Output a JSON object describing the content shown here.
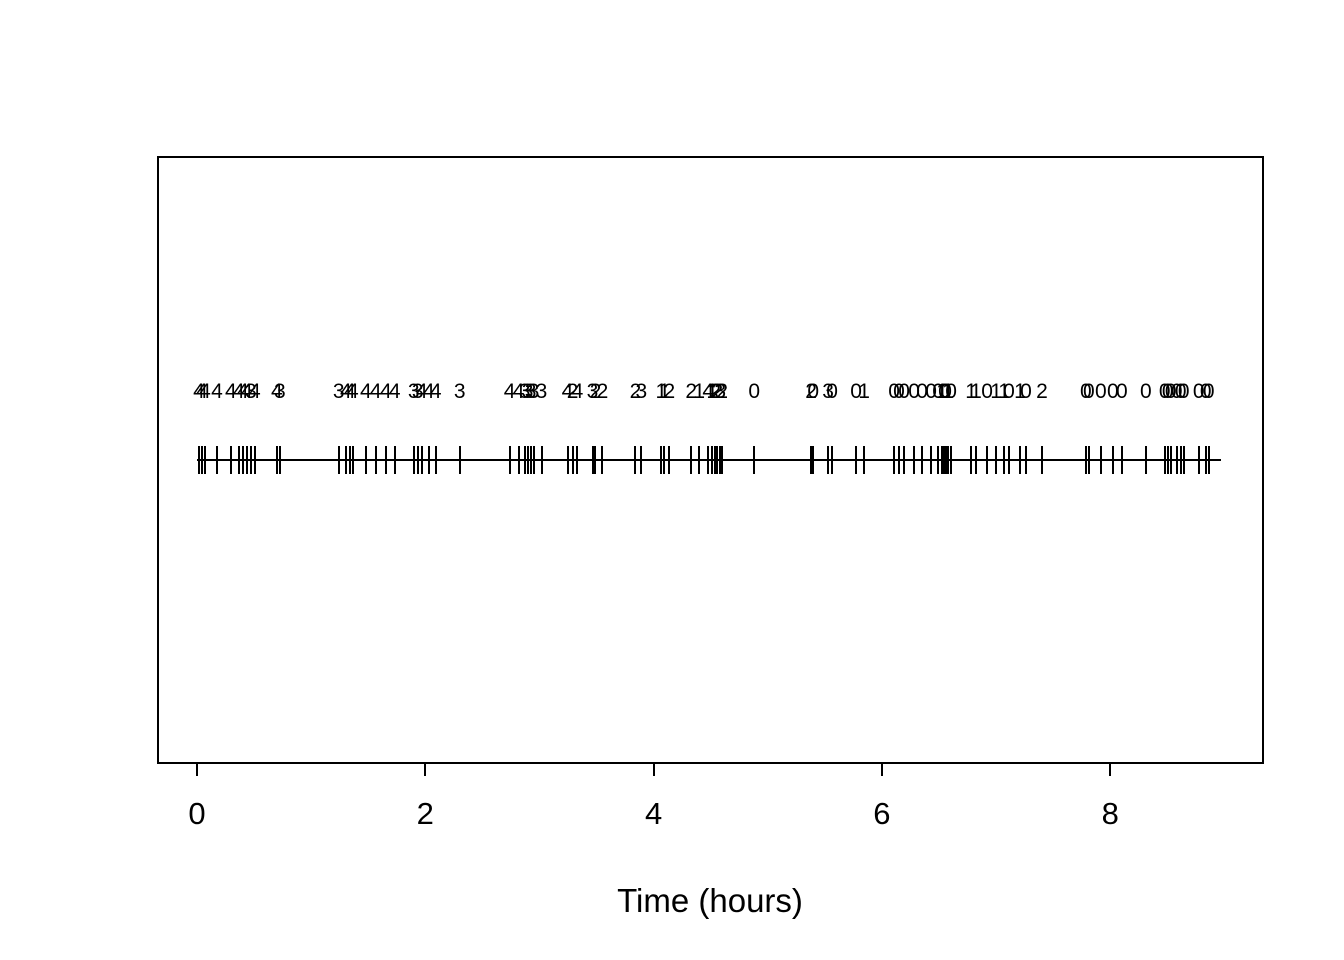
{
  "figure": {
    "background": "#ffffff",
    "foreground": "#000000",
    "xlabel": "Time (hours)"
  },
  "chart_data": {
    "type": "scatter",
    "subtype": "marked-event-rug-timeline",
    "title": "",
    "xlabel": "Time (hours)",
    "ylabel": "",
    "x_axis_ticks": [
      0,
      2,
      4,
      6,
      8
    ],
    "xlim": [
      -0.36,
      9.33
    ],
    "baseline_extent": [
      0,
      8.97
    ],
    "grid": "off",
    "legend": "none",
    "event_times_hours": [
      0.017,
      0.044,
      0.07,
      0.175,
      0.297,
      0.367,
      0.402,
      0.437,
      0.472,
      0.507,
      0.7,
      0.726,
      1.242,
      1.304,
      1.339,
      1.365,
      1.479,
      1.566,
      1.654,
      1.732,
      1.899,
      1.934,
      1.969,
      2.03,
      2.091,
      2.301,
      2.738,
      2.817,
      2.87,
      2.896,
      2.922,
      2.948,
      3.018,
      3.246,
      3.29,
      3.333,
      3.465,
      3.491,
      3.552,
      3.841,
      3.893,
      4.068,
      4.094,
      4.138,
      4.33,
      4.4,
      4.479,
      4.514,
      4.54,
      4.558,
      4.584,
      4.601,
      4.881,
      5.38,
      5.398,
      5.529,
      5.564,
      5.774,
      5.844,
      6.107,
      6.15,
      6.194,
      6.282,
      6.352,
      6.431,
      6.492,
      6.527,
      6.544,
      6.562,
      6.579,
      6.606,
      6.781,
      6.824,
      6.921,
      7.0,
      7.07,
      7.113,
      7.21,
      7.262,
      7.402,
      7.787,
      7.813,
      7.918,
      8.023,
      8.102,
      8.312,
      8.478,
      8.504,
      8.53,
      8.583,
      8.618,
      8.644,
      8.775,
      8.837,
      8.863
    ],
    "event_marks": [
      4,
      4,
      4,
      4,
      4,
      4,
      4,
      4,
      3,
      4,
      4,
      3,
      3,
      4,
      4,
      4,
      4,
      4,
      4,
      4,
      3,
      3,
      4,
      4,
      4,
      3,
      4,
      4,
      3,
      3,
      3,
      3,
      3,
      4,
      2,
      4,
      3,
      2,
      2,
      2,
      3,
      1,
      1,
      2,
      2,
      1,
      4,
      1,
      2,
      2,
      3,
      2,
      0,
      2,
      0,
      3,
      0,
      0,
      1,
      0,
      0,
      0,
      0,
      0,
      0,
      0,
      1,
      0,
      0,
      1,
      0,
      1,
      1,
      0,
      1,
      1,
      0,
      1,
      0,
      2,
      0,
      0,
      0,
      0,
      0,
      0,
      0,
      0,
      0,
      0,
      0,
      0,
      0,
      0,
      0
    ]
  }
}
